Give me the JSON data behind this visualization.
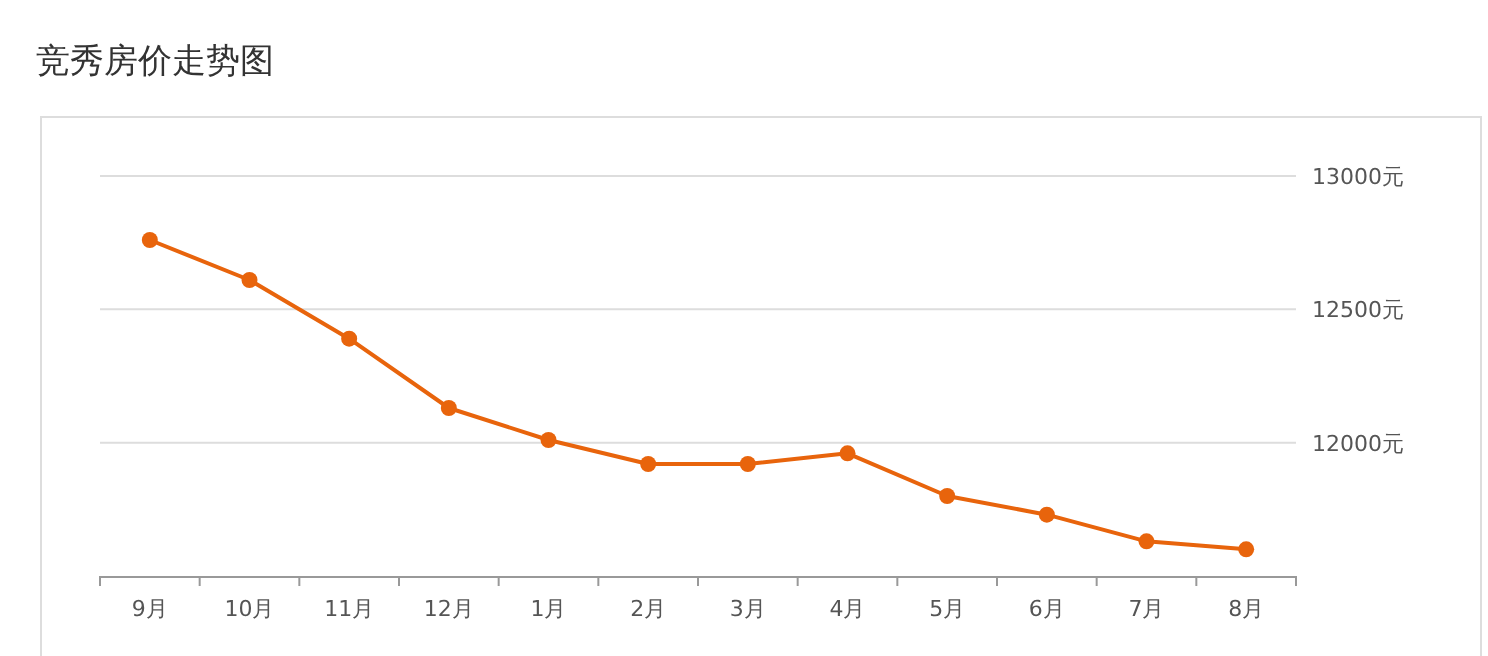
{
  "chart_data": {
    "type": "line",
    "title": "竞秀房价走势图",
    "categories": [
      "9月",
      "10月",
      "11月",
      "12月",
      "1月",
      "2月",
      "3月",
      "4月",
      "5月",
      "6月",
      "7月",
      "8月"
    ],
    "values": [
      12760,
      12610,
      12390,
      12130,
      12010,
      11920,
      11920,
      11960,
      11800,
      11730,
      11630,
      11600
    ],
    "color": "#e8640c",
    "marker": "circle",
    "grid": "y",
    "ylim": [
      11500,
      13000
    ],
    "yticks": [
      {
        "value": 12000,
        "label": "12000元"
      },
      {
        "value": 12500,
        "label": "12500元"
      },
      {
        "value": 13000,
        "label": "13000元"
      }
    ]
  }
}
